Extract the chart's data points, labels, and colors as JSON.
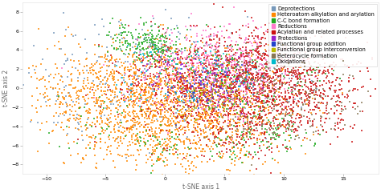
{
  "xlabel": "t-SNE axis 1",
  "ylabel": "t-SNE axis 2",
  "background_color": "#ffffff",
  "categories": [
    "Deprotections",
    "Heteroatom alkylation and arylation",
    "C-C bond formation",
    "Reductions",
    "Acylation and related processes",
    "Protections",
    "Functional group addition",
    "Functional group interconversion",
    "Heterocycle formation",
    "Oxidations"
  ],
  "colors": [
    "#7799bb",
    "#ff8800",
    "#22aa22",
    "#ff77cc",
    "#cc1111",
    "#9922cc",
    "#2244cc",
    "#bbbb00",
    "#887755",
    "#00bbcc"
  ],
  "figsize": [
    4.74,
    2.41
  ],
  "dpi": 100,
  "marker_size": 1.5,
  "legend_fontsize": 4.8,
  "axis_label_fontsize": 5.5,
  "tick_fontsize": 4.5,
  "xlim": [
    -12,
    18
  ],
  "ylim": [
    -9,
    9
  ]
}
